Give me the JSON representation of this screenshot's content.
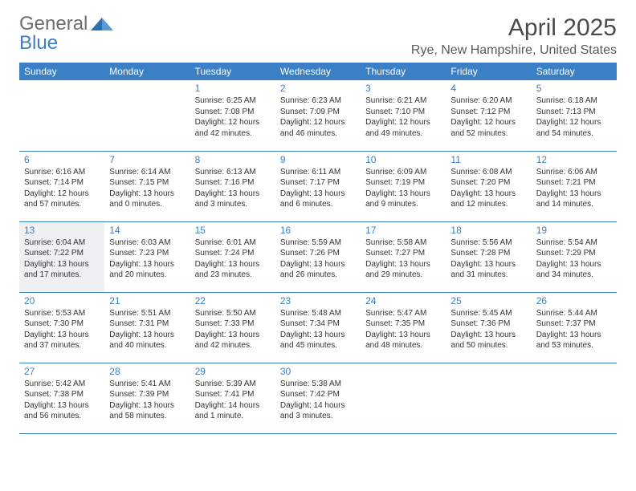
{
  "logo": {
    "word1": "General",
    "word2": "Blue"
  },
  "title": {
    "month": "April 2025",
    "location": "Rye, New Hampshire, United States"
  },
  "colors": {
    "brand_blue": "#3b7fc4",
    "logo_gray": "#6d6d6d",
    "text": "#333333",
    "highlight_bg": "#eef0f2",
    "page_bg": "#ffffff"
  },
  "day_headers": [
    "Sunday",
    "Monday",
    "Tuesday",
    "Wednesday",
    "Thursday",
    "Friday",
    "Saturday"
  ],
  "highlight_days": [
    13
  ],
  "weeks": [
    [
      null,
      null,
      {
        "n": "1",
        "sr": "6:25 AM",
        "ss": "7:08 PM",
        "dl": "12 hours and 42 minutes."
      },
      {
        "n": "2",
        "sr": "6:23 AM",
        "ss": "7:09 PM",
        "dl": "12 hours and 46 minutes."
      },
      {
        "n": "3",
        "sr": "6:21 AM",
        "ss": "7:10 PM",
        "dl": "12 hours and 49 minutes."
      },
      {
        "n": "4",
        "sr": "6:20 AM",
        "ss": "7:12 PM",
        "dl": "12 hours and 52 minutes."
      },
      {
        "n": "5",
        "sr": "6:18 AM",
        "ss": "7:13 PM",
        "dl": "12 hours and 54 minutes."
      }
    ],
    [
      {
        "n": "6",
        "sr": "6:16 AM",
        "ss": "7:14 PM",
        "dl": "12 hours and 57 minutes."
      },
      {
        "n": "7",
        "sr": "6:14 AM",
        "ss": "7:15 PM",
        "dl": "13 hours and 0 minutes."
      },
      {
        "n": "8",
        "sr": "6:13 AM",
        "ss": "7:16 PM",
        "dl": "13 hours and 3 minutes."
      },
      {
        "n": "9",
        "sr": "6:11 AM",
        "ss": "7:17 PM",
        "dl": "13 hours and 6 minutes."
      },
      {
        "n": "10",
        "sr": "6:09 AM",
        "ss": "7:19 PM",
        "dl": "13 hours and 9 minutes."
      },
      {
        "n": "11",
        "sr": "6:08 AM",
        "ss": "7:20 PM",
        "dl": "13 hours and 12 minutes."
      },
      {
        "n": "12",
        "sr": "6:06 AM",
        "ss": "7:21 PM",
        "dl": "13 hours and 14 minutes."
      }
    ],
    [
      {
        "n": "13",
        "sr": "6:04 AM",
        "ss": "7:22 PM",
        "dl": "13 hours and 17 minutes."
      },
      {
        "n": "14",
        "sr": "6:03 AM",
        "ss": "7:23 PM",
        "dl": "13 hours and 20 minutes."
      },
      {
        "n": "15",
        "sr": "6:01 AM",
        "ss": "7:24 PM",
        "dl": "13 hours and 23 minutes."
      },
      {
        "n": "16",
        "sr": "5:59 AM",
        "ss": "7:26 PM",
        "dl": "13 hours and 26 minutes."
      },
      {
        "n": "17",
        "sr": "5:58 AM",
        "ss": "7:27 PM",
        "dl": "13 hours and 29 minutes."
      },
      {
        "n": "18",
        "sr": "5:56 AM",
        "ss": "7:28 PM",
        "dl": "13 hours and 31 minutes."
      },
      {
        "n": "19",
        "sr": "5:54 AM",
        "ss": "7:29 PM",
        "dl": "13 hours and 34 minutes."
      }
    ],
    [
      {
        "n": "20",
        "sr": "5:53 AM",
        "ss": "7:30 PM",
        "dl": "13 hours and 37 minutes."
      },
      {
        "n": "21",
        "sr": "5:51 AM",
        "ss": "7:31 PM",
        "dl": "13 hours and 40 minutes."
      },
      {
        "n": "22",
        "sr": "5:50 AM",
        "ss": "7:33 PM",
        "dl": "13 hours and 42 minutes."
      },
      {
        "n": "23",
        "sr": "5:48 AM",
        "ss": "7:34 PM",
        "dl": "13 hours and 45 minutes."
      },
      {
        "n": "24",
        "sr": "5:47 AM",
        "ss": "7:35 PM",
        "dl": "13 hours and 48 minutes."
      },
      {
        "n": "25",
        "sr": "5:45 AM",
        "ss": "7:36 PM",
        "dl": "13 hours and 50 minutes."
      },
      {
        "n": "26",
        "sr": "5:44 AM",
        "ss": "7:37 PM",
        "dl": "13 hours and 53 minutes."
      }
    ],
    [
      {
        "n": "27",
        "sr": "5:42 AM",
        "ss": "7:38 PM",
        "dl": "13 hours and 56 minutes."
      },
      {
        "n": "28",
        "sr": "5:41 AM",
        "ss": "7:39 PM",
        "dl": "13 hours and 58 minutes."
      },
      {
        "n": "29",
        "sr": "5:39 AM",
        "ss": "7:41 PM",
        "dl": "14 hours and 1 minute."
      },
      {
        "n": "30",
        "sr": "5:38 AM",
        "ss": "7:42 PM",
        "dl": "14 hours and 3 minutes."
      },
      null,
      null,
      null
    ]
  ],
  "labels": {
    "sunrise": "Sunrise: ",
    "sunset": "Sunset: ",
    "daylight": "Daylight: "
  }
}
